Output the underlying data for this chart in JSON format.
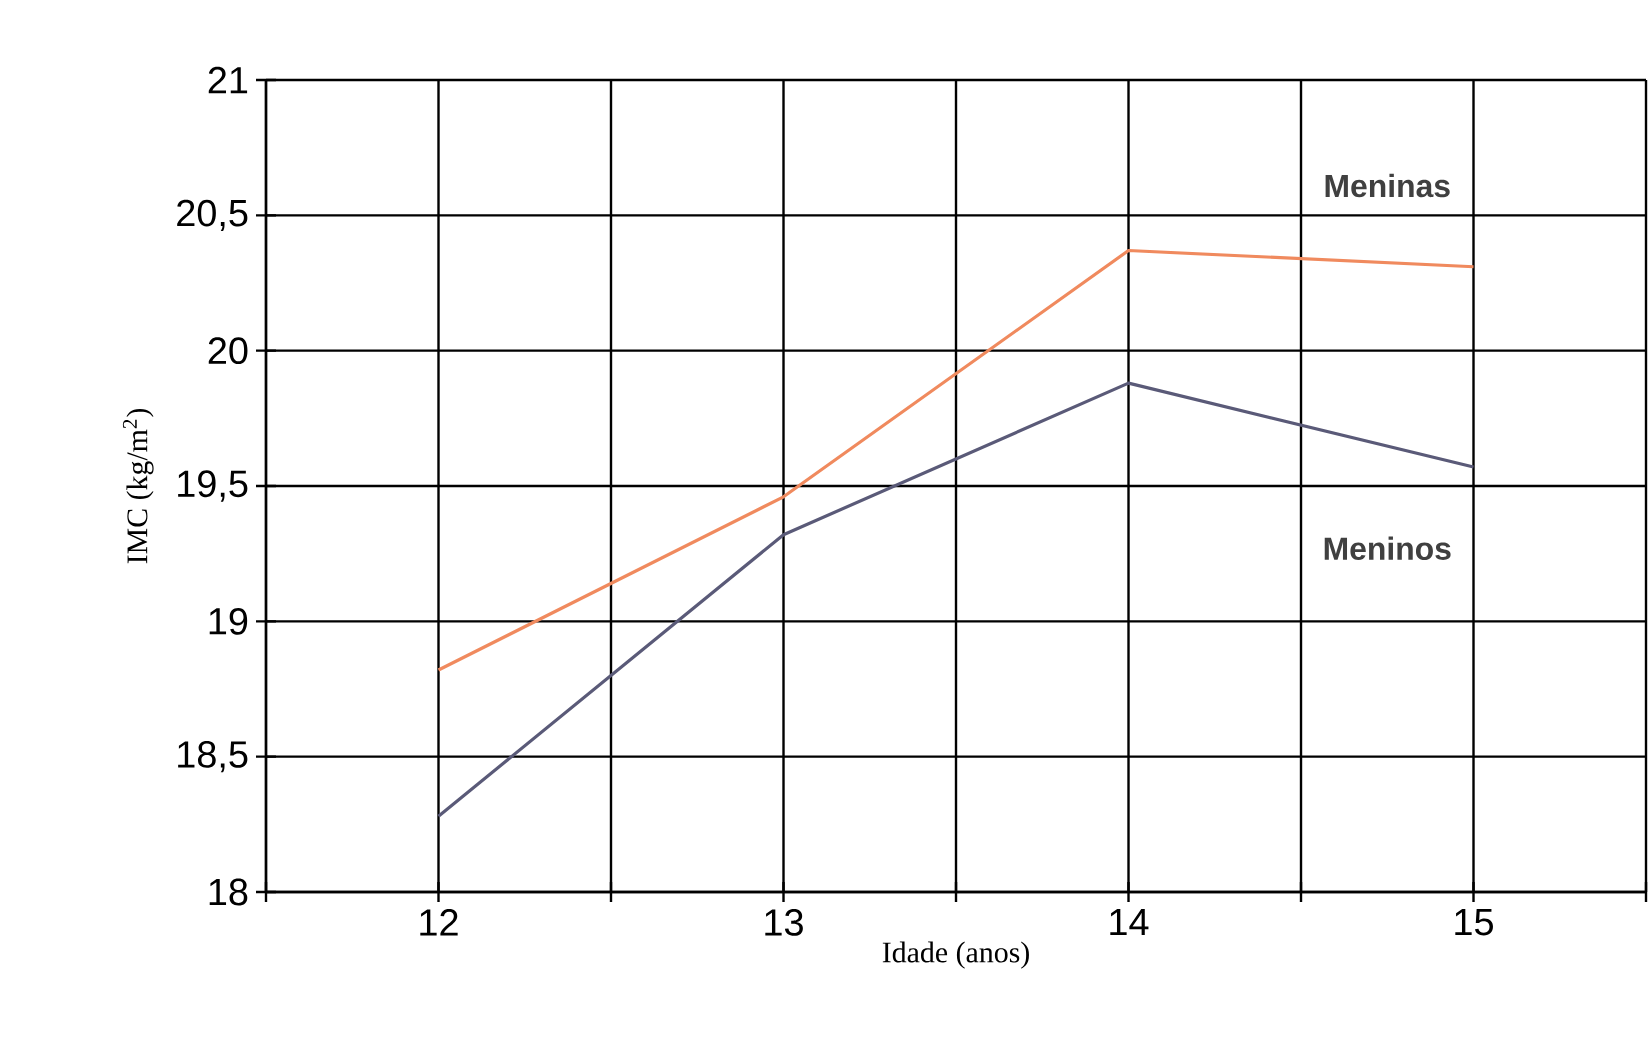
{
  "chart_data": {
    "type": "line",
    "xlabel": "Idade (anos)",
    "ylabel": "IMC (kg/m$^{2}$)",
    "x": [
      12,
      13,
      14,
      15
    ],
    "series": [
      {
        "name": "Meninas",
        "color": "#f08a5e",
        "values": [
          18.82,
          19.46,
          20.37,
          20.31
        ]
      },
      {
        "name": "Meninos",
        "color": "#5a5a78",
        "values": [
          18.28,
          19.32,
          19.88,
          19.57
        ]
      }
    ],
    "xlim": [
      11.5,
      15.5
    ],
    "xticks": [
      {
        "value": 11.5,
        "label": null
      },
      12,
      {
        "value": 12.5,
        "label": null
      },
      13,
      {
        "value": 13.5,
        "label": null
      },
      14,
      {
        "value": 14.5,
        "label": null
      },
      15,
      {
        "value": 15.5,
        "label": null
      }
    ],
    "ylim": [
      18,
      21
    ],
    "yticks": [
      18,
      {
        "value": 18.5,
        "label": "18,5"
      },
      19,
      {
        "value": 19.5,
        "label": "19,5"
      },
      20,
      {
        "value": 20.5,
        "label": "20,5"
      },
      21
    ],
    "grid": true,
    "legend": false,
    "marker": "none",
    "line_style": "solid"
  }
}
